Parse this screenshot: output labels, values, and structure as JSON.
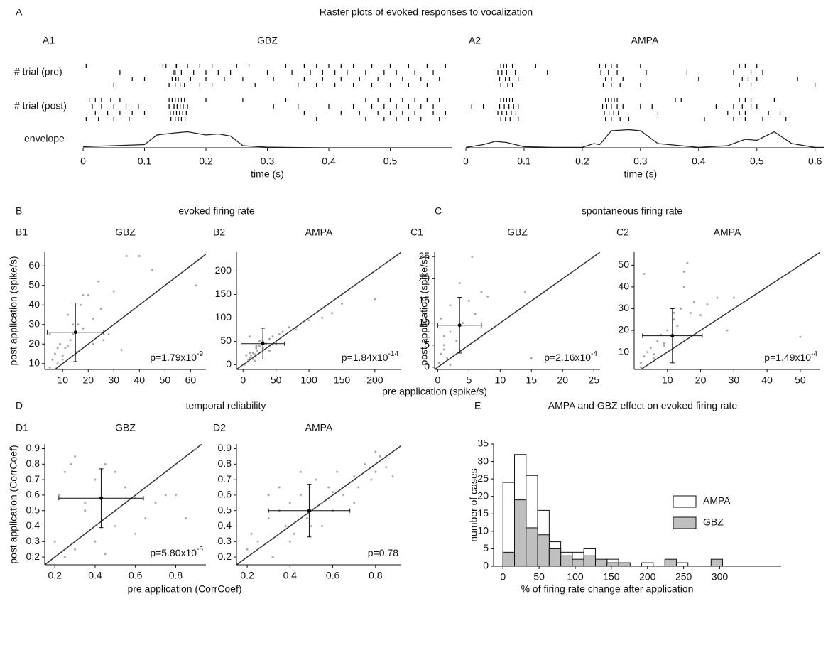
{
  "figure": {
    "sections": [
      {
        "label": "A",
        "title": "Raster plots of evoked responses to vocalization"
      },
      {
        "label": "B",
        "title": "evoked firing rate"
      },
      {
        "label": "C",
        "title": "spontaneous firing rate"
      },
      {
        "label": "D",
        "title": "temporal reliability"
      }
    ],
    "xlabels": [
      "pre application (spike/s)",
      "pre application (CorrCoef)"
    ]
  },
  "chart_data": [
    {
      "type": "raster",
      "panel_label": "A1",
      "title": "GBZ",
      "xlabel": "time (s)",
      "row_labels": [
        "# trial (pre)",
        "# trial (post)",
        "envelope"
      ],
      "xlim": [
        0,
        0.6
      ],
      "xticks": [
        0,
        0.1,
        0.2,
        0.3,
        0.4,
        0.5
      ],
      "pre": [
        [
          0.005,
          0.13,
          0.135,
          0.15,
          0.152,
          0.17,
          0.19,
          0.21,
          0.25,
          0.27,
          0.33,
          0.36,
          0.38,
          0.4,
          0.42,
          0.44,
          0.47,
          0.5,
          0.53,
          0.56,
          0.59
        ],
        [
          0.06,
          0.148,
          0.15,
          0.16,
          0.18,
          0.2,
          0.22,
          0.24,
          0.3,
          0.34,
          0.37,
          0.39,
          0.41,
          0.43,
          0.46,
          0.49,
          0.51,
          0.54,
          0.57
        ],
        [
          0.08,
          0.1,
          0.145,
          0.151,
          0.155,
          0.175,
          0.2,
          0.23,
          0.26,
          0.31,
          0.36,
          0.39,
          0.42,
          0.45,
          0.48,
          0.52,
          0.55,
          0.58
        ],
        [
          0.05,
          0.14,
          0.15,
          0.158,
          0.165,
          0.19,
          0.21,
          0.28,
          0.35,
          0.38,
          0.41,
          0.44,
          0.47,
          0.5,
          0.53,
          0.56
        ]
      ],
      "post": [
        [
          0.01,
          0.02,
          0.03,
          0.045,
          0.06,
          0.14,
          0.145,
          0.15,
          0.155,
          0.16,
          0.165,
          0.2,
          0.26,
          0.33,
          0.46,
          0.48,
          0.5,
          0.52,
          0.54,
          0.56,
          0.58
        ],
        [
          0.015,
          0.03,
          0.05,
          0.07,
          0.09,
          0.14,
          0.148,
          0.153,
          0.158,
          0.163,
          0.17,
          0.31,
          0.35,
          0.4,
          0.44,
          0.47,
          0.49,
          0.51,
          0.53,
          0.55,
          0.57
        ],
        [
          0.02,
          0.04,
          0.06,
          0.08,
          0.1,
          0.142,
          0.147,
          0.152,
          0.157,
          0.162,
          0.168,
          0.36,
          0.42,
          0.45,
          0.48,
          0.5,
          0.52,
          0.54,
          0.57,
          0.59
        ],
        [
          0.005,
          0.025,
          0.05,
          0.075,
          0.143,
          0.15,
          0.155,
          0.16,
          0.166,
          0.38,
          0.46,
          0.49,
          0.51,
          0.53,
          0.55,
          0.58
        ]
      ],
      "envelope": {
        "ylim": [
          0,
          1
        ],
        "x": [
          0,
          0.05,
          0.1,
          0.12,
          0.15,
          0.17,
          0.2,
          0.22,
          0.24,
          0.26,
          0.3,
          0.35,
          0.4,
          0.5,
          0.6
        ],
        "values": [
          0.05,
          0.1,
          0.15,
          0.6,
          0.7,
          0.75,
          0.6,
          0.65,
          0.55,
          0.1,
          0.03,
          0.01,
          0,
          0,
          0
        ]
      }
    },
    {
      "type": "raster",
      "panel_label": "A2",
      "title": "AMPA",
      "xlabel": "time (s)",
      "xlim": [
        0,
        0.615
      ],
      "xticks": [
        0,
        0.1,
        0.2,
        0.3,
        0.4,
        0.5,
        0.6
      ],
      "pre": [
        [
          0.06,
          0.065,
          0.07,
          0.08,
          0.12,
          0.23,
          0.24,
          0.25,
          0.26,
          0.3,
          0.47,
          0.48,
          0.5
        ],
        [
          0.055,
          0.062,
          0.07,
          0.085,
          0.14,
          0.232,
          0.245,
          0.26,
          0.31,
          0.38,
          0.46,
          0.49,
          0.51
        ],
        [
          0.058,
          0.068,
          0.075,
          0.09,
          0.24,
          0.25,
          0.27,
          0.4,
          0.475,
          0.485,
          0.5,
          0.57
        ],
        [
          0.06,
          0.072,
          0.08,
          0.236,
          0.25,
          0.265,
          0.3,
          0.47,
          0.49,
          0.6
        ]
      ],
      "post": [
        [
          0.06,
          0.065,
          0.07,
          0.075,
          0.08,
          0.24,
          0.245,
          0.25,
          0.255,
          0.26,
          0.36,
          0.37,
          0.47,
          0.48,
          0.49,
          0.53
        ],
        [
          0.01,
          0.03,
          0.058,
          0.066,
          0.074,
          0.082,
          0.09,
          0.235,
          0.242,
          0.25,
          0.26,
          0.27,
          0.3,
          0.32,
          0.43,
          0.46,
          0.475,
          0.49,
          0.5
        ],
        [
          0.055,
          0.062,
          0.07,
          0.078,
          0.086,
          0.238,
          0.246,
          0.254,
          0.262,
          0.33,
          0.45,
          0.47,
          0.48,
          0.52,
          0.54
        ],
        [
          0.06,
          0.068,
          0.076,
          0.09,
          0.24,
          0.25,
          0.265,
          0.28,
          0.41,
          0.46,
          0.48,
          0.51,
          0.55
        ]
      ],
      "envelope": {
        "ylim": [
          0,
          1
        ],
        "x": [
          0,
          0.03,
          0.05,
          0.07,
          0.1,
          0.15,
          0.2,
          0.22,
          0.23,
          0.25,
          0.28,
          0.3,
          0.33,
          0.4,
          0.45,
          0.48,
          0.5,
          0.53,
          0.56,
          0.6,
          0.615
        ],
        "values": [
          0.02,
          0.15,
          0.3,
          0.25,
          0.05,
          0.02,
          0.02,
          0.2,
          0.15,
          0.8,
          0.85,
          0.8,
          0.2,
          0.02,
          0.1,
          0.4,
          0.35,
          0.75,
          0.2,
          0.02,
          0.02
        ]
      }
    },
    {
      "type": "scatter",
      "panel_label": "B1",
      "title": "GBZ",
      "ylabel": "post application (spike/s)",
      "color": "#a6a6a6",
      "x": [
        5,
        6,
        7,
        8,
        9,
        10,
        11,
        12,
        13,
        14,
        15,
        16,
        17,
        18,
        20,
        22,
        24,
        25,
        28,
        30,
        35,
        45,
        5,
        8,
        10,
        12,
        14,
        18,
        22,
        26,
        33,
        40,
        62
      ],
      "y": [
        8,
        12,
        15,
        10,
        20,
        14,
        18,
        35,
        22,
        25,
        16,
        30,
        40,
        28,
        45,
        33,
        52,
        38,
        25,
        47,
        65,
        58,
        25,
        18,
        12,
        19,
        30,
        45,
        20,
        22,
        17,
        65,
        50
      ],
      "mean": {
        "x": 15,
        "y": 26,
        "xerr": 11,
        "yerr": 15
      },
      "annotation": {
        "text": "p=1.79x10",
        "exponent": "-9"
      },
      "xlim": [
        3,
        66
      ],
      "xticks": [
        10,
        20,
        30,
        40,
        50,
        60
      ],
      "ylim": [
        7,
        67
      ],
      "yticks": [
        10,
        20,
        30,
        40,
        50,
        60
      ]
    },
    {
      "type": "scatter",
      "panel_label": "B2",
      "title": "AMPA",
      "color": "#a6a6a6",
      "x": [
        2,
        5,
        8,
        10,
        12,
        15,
        18,
        20,
        22,
        25,
        28,
        30,
        35,
        40,
        45,
        50,
        55,
        60,
        70,
        80,
        90,
        100,
        120,
        135,
        150,
        200,
        5,
        10,
        15,
        20,
        25,
        30,
        40,
        50,
        60,
        10,
        18
      ],
      "y": [
        0,
        5,
        10,
        15,
        20,
        25,
        22,
        35,
        30,
        40,
        28,
        50,
        45,
        55,
        60,
        48,
        65,
        70,
        80,
        75,
        90,
        95,
        100,
        110,
        130,
        140,
        20,
        25,
        12,
        40,
        50,
        35,
        30,
        45,
        70,
        60,
        8
      ],
      "mean": {
        "x": 30,
        "y": 45,
        "xerr": 33,
        "yerr": 33
      },
      "annotation": {
        "text": "p=1.84x10",
        "exponent": "-14"
      },
      "xlim": [
        -10,
        240
      ],
      "xticks": [
        0,
        50,
        100,
        150,
        200
      ],
      "ylim": [
        -10,
        240
      ],
      "yticks": [
        0,
        50,
        100,
        150,
        200
      ]
    },
    {
      "type": "scatter",
      "panel_label": "C1",
      "title": "GBZ",
      "ylabel": "post application (spike/s)",
      "color": "#a6a6a6",
      "x": [
        0.2,
        0.5,
        1,
        1,
        1.5,
        2,
        2,
        3,
        3.5,
        4,
        5,
        6,
        7,
        14,
        15,
        0.5,
        1,
        2,
        8,
        5.5
      ],
      "y": [
        1,
        3,
        5,
        7,
        2,
        8,
        14,
        6,
        19,
        10,
        15,
        12,
        17,
        17,
        2,
        11,
        4,
        0.5,
        16,
        25
      ],
      "mean": {
        "x": 3.5,
        "y": 9.5,
        "xerr": 3.5,
        "yerr": 6.3
      },
      "annotation": {
        "text": "p=2.16x10",
        "exponent": "-4"
      },
      "xlim": [
        -0.5,
        26
      ],
      "xticks": [
        0,
        5,
        10,
        15,
        20,
        25
      ],
      "ylim": [
        -0.5,
        26
      ],
      "yticks": [
        0,
        5,
        10,
        15,
        20,
        25
      ]
    },
    {
      "type": "scatter",
      "panel_label": "C2",
      "title": "AMPA",
      "color": "#a6a6a6",
      "x": [
        2,
        3,
        4,
        5,
        6,
        7,
        8,
        9,
        10,
        11,
        12,
        13,
        14,
        15,
        16,
        18,
        20,
        22,
        25,
        28,
        30,
        50,
        3,
        6,
        9,
        12,
        15,
        17,
        2
      ],
      "y": [
        5,
        8,
        10,
        12,
        7,
        15,
        18,
        14,
        20,
        11,
        25,
        22,
        30,
        47,
        51,
        33,
        27,
        32,
        35,
        20,
        35,
        17,
        46,
        9,
        13,
        28,
        40,
        28,
        3
      ],
      "mean": {
        "x": 11.5,
        "y": 17.5,
        "xerr": 9,
        "yerr": 12.5
      },
      "annotation": {
        "text": "p=1.49x10",
        "exponent": "-4"
      },
      "xlim": [
        0,
        56
      ],
      "xticks": [
        10,
        20,
        30,
        40,
        50
      ],
      "ylim": [
        2,
        56
      ],
      "yticks": [
        10,
        20,
        30,
        40,
        50
      ]
    },
    {
      "type": "scatter",
      "panel_label": "D1",
      "title": "GBZ",
      "ylabel": "post application (CorrCoef)",
      "color": "#a6a6a6",
      "x": [
        0.2,
        0.22,
        0.25,
        0.3,
        0.35,
        0.4,
        0.45,
        0.5,
        0.55,
        0.6,
        0.65,
        0.7,
        0.75,
        0.8,
        0.85,
        0.9,
        0.25,
        0.3,
        0.35,
        0.45,
        0.5,
        0.4,
        0.28,
        0.6
      ],
      "y": [
        0.3,
        0.6,
        0.75,
        0.85,
        0.5,
        0.7,
        0.8,
        0.4,
        0.65,
        0.35,
        0.45,
        0.55,
        0.6,
        0.6,
        0.45,
        0.9,
        0.2,
        0.25,
        0.55,
        0.22,
        0.75,
        0.3,
        0.8,
        0.58
      ],
      "mean": {
        "x": 0.43,
        "y": 0.58,
        "xerr": 0.21,
        "yerr": 0.19
      },
      "annotation": {
        "text": "p=5.80x10",
        "exponent": "-5"
      },
      "xlim": [
        0.15,
        0.95
      ],
      "xticks": [
        0.2,
        0.4,
        0.6,
        0.8
      ],
      "ylim": [
        0.15,
        0.93
      ],
      "yticks": [
        0.2,
        0.3,
        0.4,
        0.5,
        0.6,
        0.7,
        0.8,
        0.9
      ]
    },
    {
      "type": "scatter",
      "panel_label": "D2",
      "title": "AMPA",
      "color": "#a6a6a6",
      "x": [
        0.2,
        0.22,
        0.25,
        0.3,
        0.32,
        0.35,
        0.38,
        0.4,
        0.42,
        0.45,
        0.48,
        0.5,
        0.52,
        0.55,
        0.58,
        0.6,
        0.62,
        0.65,
        0.7,
        0.72,
        0.75,
        0.78,
        0.8,
        0.82,
        0.85,
        0.88,
        0.3,
        0.4,
        0.5,
        0.6,
        0.7,
        0.8,
        0.35,
        0.45,
        0.55
      ],
      "y": [
        0.25,
        0.35,
        0.3,
        0.45,
        0.2,
        0.5,
        0.4,
        0.55,
        0.35,
        0.6,
        0.45,
        0.5,
        0.7,
        0.55,
        0.65,
        0.5,
        0.75,
        0.6,
        0.72,
        0.65,
        0.8,
        0.7,
        0.75,
        0.85,
        0.78,
        0.72,
        0.6,
        0.3,
        0.4,
        0.62,
        0.55,
        0.88,
        0.65,
        0.75,
        0.4
      ],
      "mean": {
        "x": 0.49,
        "y": 0.5,
        "xerr": 0.19,
        "yerr": 0.17
      },
      "annotation": {
        "text": "p=0.78"
      },
      "xlim": [
        0.15,
        0.92
      ],
      "xticks": [
        0.2,
        0.4,
        0.6,
        0.8
      ],
      "ylim": [
        0.15,
        0.93
      ],
      "yticks": [
        0.2,
        0.3,
        0.4,
        0.5,
        0.6,
        0.7,
        0.8,
        0.9
      ]
    },
    {
      "type": "histogram",
      "panel_label": "E",
      "title": "AMPA and GBZ effect on evoked firing rate",
      "xlabel": "% of firing rate change after application",
      "ylabel": "number of cases",
      "bins": [
        0,
        16,
        32,
        48,
        64,
        80,
        96,
        112,
        128,
        144,
        160,
        176,
        192,
        208,
        224,
        240,
        256,
        272,
        288,
        304,
        320
      ],
      "series": [
        {
          "name": "AMPA",
          "color": "#ffffff",
          "values": [
            24,
            32,
            26,
            16,
            7,
            4,
            4,
            5,
            1,
            2,
            0,
            0,
            1,
            0,
            0,
            1,
            0,
            0,
            0,
            0
          ]
        },
        {
          "name": "GBZ",
          "color": "#bfbfbf",
          "values": [
            4,
            19,
            11,
            9,
            5,
            3,
            2,
            3,
            2,
            1,
            1,
            0,
            0,
            0,
            2,
            0,
            0,
            0,
            2,
            0
          ]
        }
      ],
      "xlim": [
        -13,
        385
      ],
      "xticks": [
        0,
        50,
        100,
        150,
        200,
        250,
        300
      ],
      "ylim": [
        0,
        35
      ],
      "yticks": [
        0,
        5,
        10,
        15,
        20,
        25,
        30,
        35
      ],
      "legend": "upper right"
    }
  ]
}
